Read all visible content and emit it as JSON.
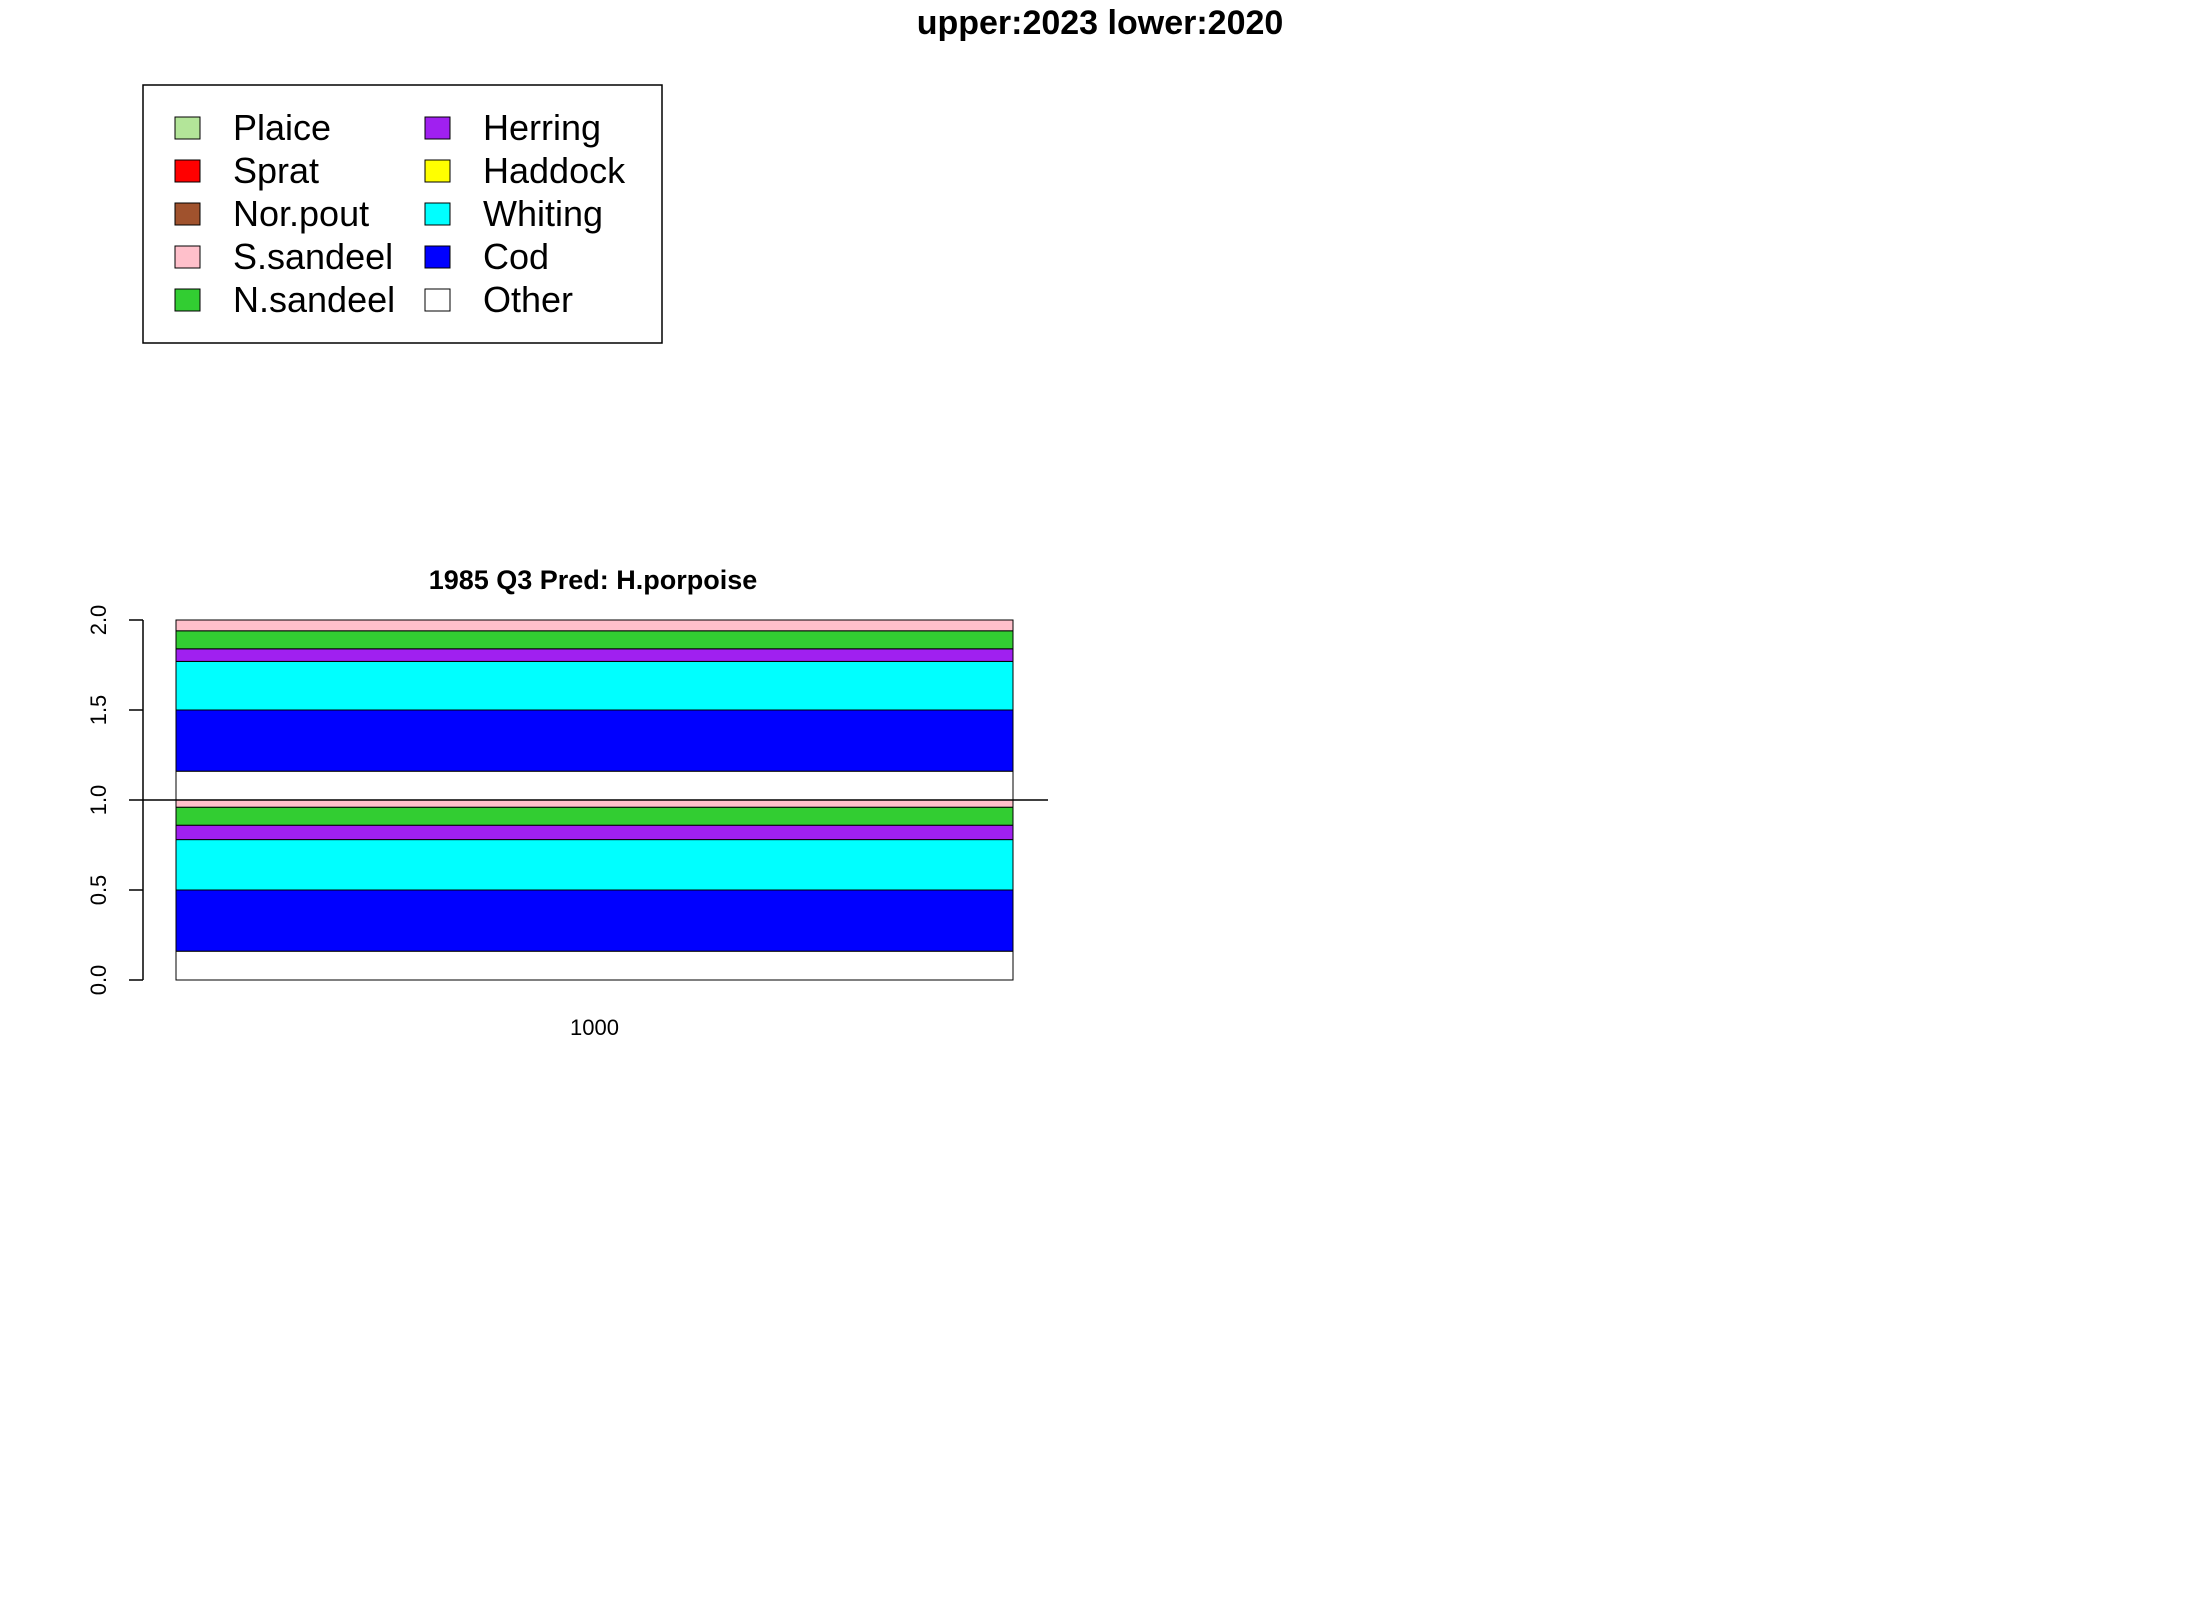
{
  "page_title": "upper:2023  lower:2020",
  "legend": {
    "entries": [
      {
        "label": "Plaice",
        "color": "#B3E599"
      },
      {
        "label": "Sprat",
        "color": "#FF0000"
      },
      {
        "label": "Nor.pout",
        "color": "#A0522D"
      },
      {
        "label": "S.sandeel",
        "color": "#FFC0CB"
      },
      {
        "label": "N.sandeel",
        "color": "#32CD32"
      },
      {
        "label": "Herring",
        "color": "#A020F0"
      },
      {
        "label": "Haddock",
        "color": "#FFFF00"
      },
      {
        "label": "Whiting",
        "color": "#00FFFF"
      },
      {
        "label": "Cod",
        "color": "#0000FF"
      },
      {
        "label": "Other",
        "color": "#FFFFFF"
      }
    ]
  },
  "chart_data": {
    "type": "bar",
    "title": "1985 Q3  Pred: H.porpoise",
    "categories": [
      "1000"
    ],
    "xlabel": "",
    "ylabel": "",
    "ylim": [
      0,
      2
    ],
    "yticks": [
      "0.0",
      "0.5",
      "1.0",
      "1.5",
      "2.0"
    ],
    "reference_line": 1.0,
    "stacked": true,
    "stack_order": [
      "Other",
      "Cod",
      "Whiting",
      "Haddock",
      "Herring",
      "N.sandeel",
      "S.sandeel",
      "Nor.pout",
      "Sprat",
      "Plaice"
    ],
    "series": [
      {
        "name": "lower:2020",
        "base": 0,
        "values": {
          "Other": 0.16,
          "Cod": 0.34,
          "Whiting": 0.28,
          "Haddock": 0.0,
          "Herring": 0.08,
          "N.sandeel": 0.1,
          "S.sandeel": 0.04,
          "Nor.pout": 0.0,
          "Sprat": 0.0,
          "Plaice": 0.0
        }
      },
      {
        "name": "upper:2023",
        "base": 1,
        "values": {
          "Other": 0.16,
          "Cod": 0.34,
          "Whiting": 0.27,
          "Haddock": 0.0,
          "Herring": 0.07,
          "N.sandeel": 0.1,
          "S.sandeel": 0.06,
          "Nor.pout": 0.0,
          "Sprat": 0.0,
          "Plaice": 0.0
        }
      }
    ],
    "grid": false,
    "legend_position": "top-left"
  }
}
